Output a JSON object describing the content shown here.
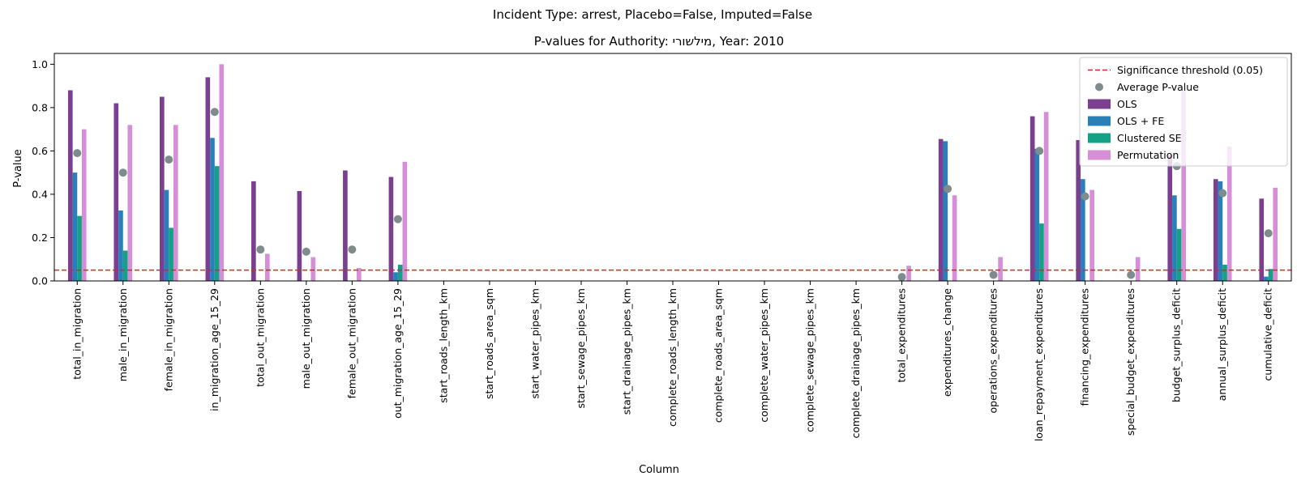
{
  "chart_data": {
    "type": "bar",
    "suptitle": "Incident Type: arrest, Placebo=False, Imputed=False",
    "title": "P-values for Authority: מילשורי, Year: 2010",
    "xlabel": "Column",
    "ylabel": "P-value",
    "ylim": [
      0,
      1.05
    ],
    "yticks": [
      0.0,
      0.2,
      0.4,
      0.6,
      0.8,
      1.0
    ],
    "ytick_labels": [
      "0.0",
      "0.2",
      "0.4",
      "0.6",
      "0.8",
      "1.0"
    ],
    "grid": false,
    "legend_position": "top-right",
    "threshold": {
      "value": 0.05,
      "label": "Significance threshold (0.05)",
      "color": "#d62728"
    },
    "average_label": "Average P-value",
    "average_color": "#7f8c8d",
    "categories": [
      "total_in_migration",
      "male_in_migration",
      "female_in_migration",
      "in_migration_age_15_29",
      "total_out_migration",
      "male_out_migration",
      "female_out_migration",
      "out_migration_age_15_29",
      "start_roads_length_km",
      "start_roads_area_sqm",
      "start_water_pipes_km",
      "start_sewage_pipes_km",
      "start_drainage_pipes_km",
      "complete_roads_length_km",
      "complete_roads_area_sqm",
      "complete_water_pipes_km",
      "complete_sewage_pipes_km",
      "complete_drainage_pipes_km",
      "total_expenditures",
      "expenditures_change",
      "operations_expenditures",
      "loan_repayment_expenditures",
      "financing_expenditures",
      "special_budget_expenditures",
      "budget_surplus_deficit",
      "annual_surplus_deficit",
      "cumulative_deficit"
    ],
    "series": [
      {
        "name": "OLS",
        "color": "#7b3f8f",
        "values": [
          0.88,
          0.82,
          0.85,
          0.94,
          0.46,
          0.415,
          0.51,
          0.48,
          null,
          null,
          null,
          null,
          null,
          null,
          null,
          null,
          null,
          null,
          null,
          0.655,
          null,
          0.76,
          0.65,
          null,
          0.58,
          0.47,
          0.38
        ]
      },
      {
        "name": "OLS + FE",
        "color": "#2980b9",
        "values": [
          0.5,
          0.325,
          0.42,
          0.66,
          null,
          null,
          null,
          0.04,
          null,
          null,
          null,
          null,
          null,
          null,
          null,
          null,
          null,
          null,
          null,
          0.645,
          null,
          0.61,
          0.47,
          null,
          0.395,
          0.46,
          0.02
        ]
      },
      {
        "name": "Clustered SE",
        "color": "#16a085",
        "values": [
          0.3,
          0.14,
          0.245,
          0.53,
          null,
          null,
          null,
          0.075,
          null,
          null,
          null,
          null,
          null,
          null,
          null,
          null,
          null,
          null,
          null,
          null,
          null,
          0.265,
          null,
          null,
          0.24,
          0.075,
          0.055
        ]
      },
      {
        "name": "Permutation",
        "color": "#d68fd6",
        "values": [
          0.7,
          0.72,
          0.72,
          1.0,
          0.125,
          0.11,
          0.06,
          0.55,
          null,
          null,
          null,
          null,
          null,
          null,
          null,
          null,
          null,
          null,
          0.07,
          0.395,
          0.11,
          0.78,
          0.42,
          0.11,
          0.88,
          0.62,
          0.43
        ]
      }
    ],
    "average": [
      0.59,
      0.5,
      0.56,
      0.78,
      0.145,
      0.135,
      0.145,
      0.285,
      null,
      null,
      null,
      null,
      null,
      null,
      null,
      null,
      null,
      null,
      0.018,
      0.425,
      0.028,
      0.6,
      0.39,
      0.028,
      0.53,
      0.405,
      0.22
    ]
  }
}
